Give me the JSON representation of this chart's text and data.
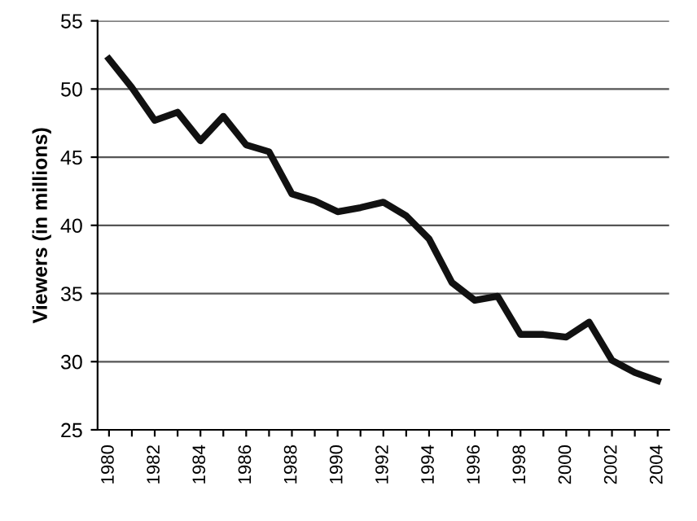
{
  "chart_data": {
    "type": "line",
    "ylabel": "Viewers (in millions)",
    "categories": [
      "1980",
      null,
      "1982",
      null,
      "1984",
      null,
      "1986",
      null,
      "1988",
      null,
      "1990",
      null,
      "1992",
      null,
      "1994",
      null,
      "1996",
      null,
      "1998",
      null,
      "2000",
      null,
      "2002",
      null,
      "2004"
    ],
    "series": [
      {
        "color": "#111111",
        "values": [
          52.2,
          50.1,
          47.7,
          48.3,
          46.2,
          48.0,
          45.9,
          45.4,
          42.3,
          41.8,
          41.0,
          41.3,
          41.7,
          40.7,
          39.0,
          35.8,
          34.5,
          34.8,
          32.0,
          32.0,
          31.8,
          32.9,
          30.1,
          29.2,
          28.6
        ]
      }
    ],
    "ylim": [
      25,
      55
    ],
    "yticks": [
      25,
      30,
      35,
      40,
      45,
      50,
      55
    ],
    "grid": "y",
    "marker": "none",
    "line_style": "solid"
  }
}
